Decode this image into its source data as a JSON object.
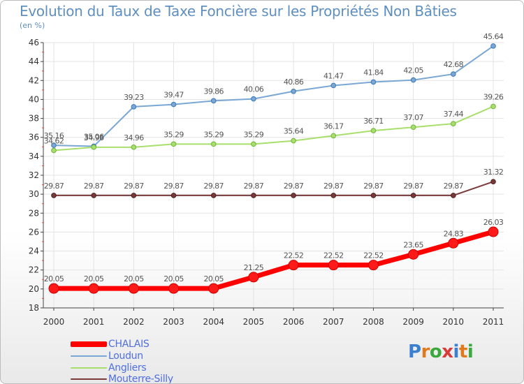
{
  "title": "Evolution du Taux de Taxe Foncière sur les Propriétés Non Bâties",
  "unit_label": "(en %)",
  "logo_text": "Proxiti",
  "chart_data": {
    "type": "line",
    "title": "Evolution du Taux de Taxe Foncière sur les Propriétés Non Bâties",
    "ylabel": "(en %)",
    "xlabel": "",
    "categories": [
      "2000",
      "2001",
      "2002",
      "2003",
      "2004",
      "2005",
      "2006",
      "2007",
      "2008",
      "2009",
      "2010",
      "2011"
    ],
    "ylim": [
      18,
      46
    ],
    "yticks": [
      18,
      20,
      22,
      24,
      26,
      28,
      30,
      32,
      34,
      36,
      38,
      40,
      42,
      44,
      46
    ],
    "grid": true,
    "legend_position": "bottom-left",
    "series": [
      {
        "name": "CHALAIS",
        "color": "#ff0000",
        "values": [
          20.05,
          20.05,
          20.05,
          20.05,
          20.05,
          21.25,
          22.52,
          22.52,
          22.52,
          23.65,
          24.83,
          26.03
        ],
        "labels": [
          "20.05",
          "20.05",
          "20.05",
          "20.05",
          "20.05",
          "21.25",
          "22.52",
          "22.52",
          "22.52",
          "23.65",
          "24.83",
          "26.03"
        ]
      },
      {
        "name": "Loudun",
        "color": "#7ba7d4",
        "values": [
          35.16,
          35.06,
          39.23,
          39.47,
          39.86,
          40.06,
          40.86,
          41.47,
          41.84,
          42.05,
          42.68,
          45.64
        ],
        "labels": [
          "35.16",
          "35.06",
          "39.23",
          "39.47",
          "39.86",
          "40.06",
          "40.86",
          "41.47",
          "41.84",
          "42.05",
          "42.68",
          "45.64"
        ]
      },
      {
        "name": "Angliers",
        "color": "#a8df6c",
        "values": [
          34.62,
          34.96,
          34.96,
          35.29,
          35.29,
          35.29,
          35.64,
          36.17,
          36.71,
          37.07,
          37.44,
          39.26
        ],
        "labels": [
          "34.62",
          "34.96",
          "34.96",
          "35.29",
          "35.29",
          "35.29",
          "35.64",
          "36.17",
          "36.71",
          "37.07",
          "37.44",
          "39.26"
        ]
      },
      {
        "name": "Mouterre-Silly",
        "color": "#7a3a3a",
        "values": [
          29.87,
          29.87,
          29.87,
          29.87,
          29.87,
          29.87,
          29.87,
          29.87,
          29.87,
          29.87,
          29.87,
          31.32
        ],
        "labels": [
          "29.87",
          "29.87",
          "29.87",
          "29.87",
          "29.87",
          "29.87",
          "29.87",
          "29.87",
          "29.87",
          "29.87",
          "29.87",
          "31.32"
        ]
      }
    ]
  }
}
